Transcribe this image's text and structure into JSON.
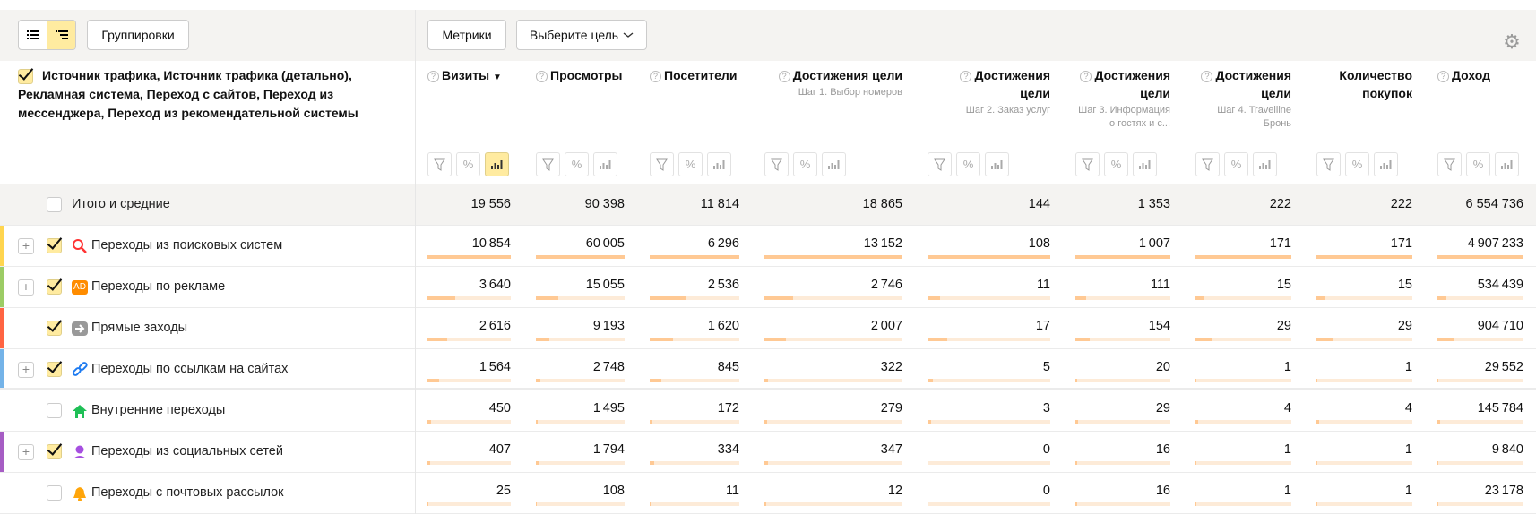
{
  "toolbar": {
    "view_list_icon": "list-icon",
    "view_tree_icon": "tree-icon",
    "groupings_label": "Группировки",
    "metrics_label": "Метрики",
    "goal_select_label": "Выберите цель",
    "settings_icon": "gear-icon"
  },
  "dimension_header": "Источник трафика, Источник трафика (детально), Рекламная система, Переход с сайтов, Переход из мессенджера, Переход из рекомендательной системы",
  "columns": [
    {
      "title": "Визиты",
      "help": true,
      "sort": "▼",
      "sub": "",
      "bars_active": true
    },
    {
      "title": "Просмотры",
      "help": true,
      "sort": "",
      "sub": ""
    },
    {
      "title": "Посетители",
      "help": true,
      "sort": "",
      "sub": ""
    },
    {
      "title": "Достижения цели",
      "help": true,
      "sort": "",
      "sub": "Шаг 1. Выбор номеров"
    },
    {
      "title": "Достижения цели",
      "help": true,
      "sort": "",
      "sub": "Шаг 2. Заказ услуг"
    },
    {
      "title": "Достижения цели",
      "help": true,
      "sort": "",
      "sub": "Шаг 3. Информация о гостях и с..."
    },
    {
      "title": "Достижения цели",
      "help": true,
      "sort": "",
      "sub": "Шаг 4. Travelline Бронь"
    },
    {
      "title": "Количество покупок",
      "help": false,
      "sort": "",
      "sub": ""
    },
    {
      "title": "Доход",
      "help": true,
      "sort": "",
      "sub": ""
    }
  ],
  "totals": {
    "label": "Итого и средние",
    "values": [
      "19 556",
      "90 398",
      "11 814",
      "18 865",
      "144",
      "1 353",
      "222",
      "222",
      "6 554 736"
    ]
  },
  "rows": [
    {
      "label": "Переходы из поисковых систем",
      "icon": "search-icon",
      "color": "#ffd54f",
      "expandable": true,
      "checked": true,
      "values": [
        10854,
        60005,
        6296,
        13152,
        108,
        1007,
        171,
        171,
        4907233
      ]
    },
    {
      "label": "Переходы по рекламе",
      "icon": "ad-icon",
      "color": "#9ccc65",
      "expandable": true,
      "checked": true,
      "values": [
        3640,
        15055,
        2536,
        2746,
        11,
        111,
        15,
        15,
        534439
      ]
    },
    {
      "label": "Прямые заходы",
      "icon": "arrow-right-icon",
      "color": "#ff6442",
      "expandable": false,
      "checked": true,
      "values": [
        2616,
        9193,
        1620,
        2007,
        17,
        154,
        29,
        29,
        904710
      ]
    },
    {
      "label": "Переходы по ссылкам на сайтах",
      "icon": "link-icon",
      "color": "#74b3e8",
      "expandable": true,
      "checked": true,
      "values": [
        1564,
        2748,
        845,
        322,
        5,
        20,
        1,
        1,
        29552
      ]
    },
    {
      "label": "Внутренние переходы",
      "icon": "home-icon",
      "color": "",
      "expandable": false,
      "checked": false,
      "values": [
        450,
        1495,
        172,
        279,
        3,
        29,
        4,
        4,
        145784
      ]
    },
    {
      "label": "Переходы из социальных сетей",
      "icon": "person-icon",
      "color": "#a65dc4",
      "expandable": true,
      "checked": true,
      "values": [
        407,
        1794,
        334,
        347,
        0,
        16,
        1,
        1,
        9840
      ]
    },
    {
      "label": "Переходы с почтовых рассылок",
      "icon": "bell-icon",
      "color": "",
      "expandable": false,
      "checked": false,
      "values": [
        25,
        108,
        11,
        12,
        0,
        16,
        1,
        1,
        23178
      ]
    }
  ],
  "colors": {
    "bar_fill": "#ffc994",
    "bar_track": "#fdebd8",
    "accent": "#ffeba0"
  }
}
